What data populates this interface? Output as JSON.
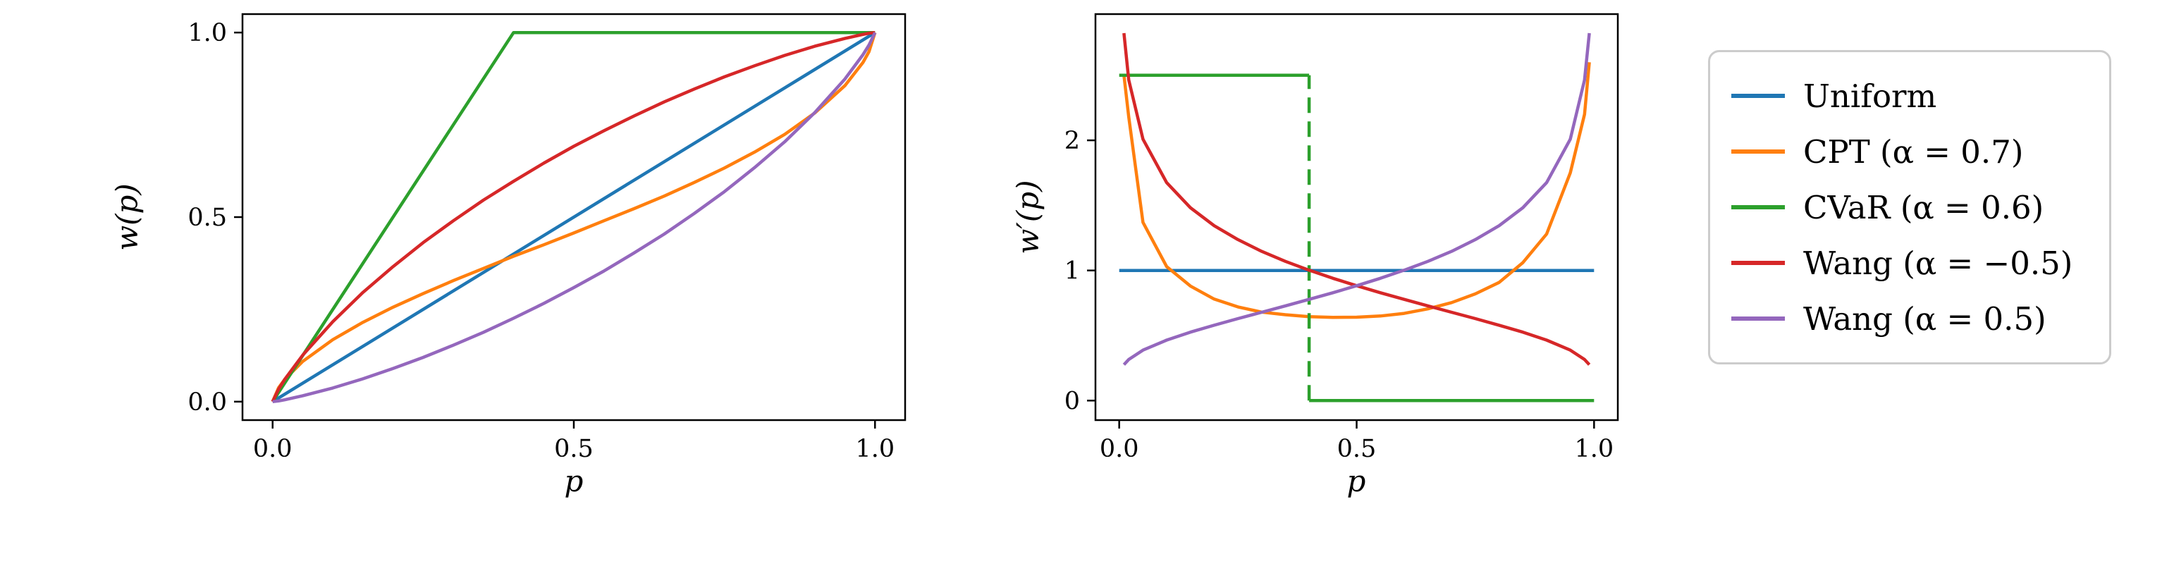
{
  "figure": {
    "background": "#ffffff"
  },
  "legend": {
    "position": "outside-right",
    "items": [
      {
        "label": "Uniform",
        "color": "#1f77b4"
      },
      {
        "label": "CPT (α = 0.7)",
        "color": "#ff7f0e"
      },
      {
        "label": "CVaR (α = 0.6)",
        "color": "#2ca02c"
      },
      {
        "label": "Wang (α = −0.5)",
        "color": "#d62728"
      },
      {
        "label": "Wang (α = 0.5)",
        "color": "#9467bd"
      }
    ]
  },
  "chart_data": [
    {
      "type": "line",
      "title": "",
      "xlabel": "p",
      "ylabel": "w(p)",
      "xlim": [
        -0.05,
        1.05
      ],
      "ylim": [
        -0.05,
        1.05
      ],
      "grid": false,
      "xticks": [
        0.0,
        0.5,
        1.0
      ],
      "xtick_labels": [
        "0.0",
        "0.5",
        "1.0"
      ],
      "yticks": [
        0.0,
        0.5,
        1.0
      ],
      "ytick_labels": [
        "0.0",
        "0.5",
        "1.0"
      ],
      "series": [
        {
          "name": "Uniform",
          "color": "#1f77b4",
          "x": [
            0,
            1
          ],
          "y": [
            0,
            1
          ]
        },
        {
          "name": "CPT (α = 0.7)",
          "color": "#ff7f0e",
          "x": [
            0,
            0.01,
            0.02,
            0.05,
            0.1,
            0.15,
            0.2,
            0.25,
            0.3,
            0.35,
            0.4,
            0.45,
            0.5,
            0.55,
            0.6,
            0.65,
            0.7,
            0.75,
            0.8,
            0.85,
            0.9,
            0.95,
            0.98,
            0.99,
            1.0
          ],
          "y": [
            0,
            0.038,
            0.06,
            0.109,
            0.168,
            0.215,
            0.256,
            0.293,
            0.328,
            0.361,
            0.394,
            0.425,
            0.457,
            0.49,
            0.523,
            0.557,
            0.594,
            0.633,
            0.676,
            0.724,
            0.782,
            0.856,
            0.919,
            0.948,
            1.0
          ]
        },
        {
          "name": "CVaR (α = 0.6)",
          "color": "#2ca02c",
          "x": [
            0,
            0.4,
            1.0
          ],
          "y": [
            0,
            1.0,
            1.0
          ]
        },
        {
          "name": "Wang (α = −0.5)",
          "color": "#d62728",
          "x": [
            0,
            0.01,
            0.02,
            0.05,
            0.1,
            0.15,
            0.2,
            0.25,
            0.3,
            0.35,
            0.4,
            0.45,
            0.5,
            0.55,
            0.6,
            0.65,
            0.7,
            0.75,
            0.8,
            0.85,
            0.9,
            0.95,
            0.98,
            0.99,
            1.0
          ],
          "y": [
            0,
            0.034,
            0.06,
            0.126,
            0.217,
            0.296,
            0.366,
            0.431,
            0.49,
            0.546,
            0.597,
            0.646,
            0.692,
            0.734,
            0.774,
            0.812,
            0.847,
            0.88,
            0.91,
            0.938,
            0.963,
            0.984,
            0.995,
            0.998,
            1.0
          ]
        },
        {
          "name": "Wang (α = 0.5)",
          "color": "#9467bd",
          "x": [
            0,
            0.01,
            0.02,
            0.05,
            0.1,
            0.15,
            0.2,
            0.25,
            0.3,
            0.35,
            0.4,
            0.45,
            0.5,
            0.55,
            0.6,
            0.65,
            0.7,
            0.75,
            0.8,
            0.85,
            0.9,
            0.95,
            0.98,
            0.99,
            1.0
          ],
          "y": [
            0,
            0.002,
            0.005,
            0.016,
            0.037,
            0.062,
            0.09,
            0.12,
            0.153,
            0.188,
            0.226,
            0.266,
            0.309,
            0.354,
            0.403,
            0.454,
            0.51,
            0.569,
            0.634,
            0.704,
            0.783,
            0.874,
            0.94,
            0.966,
            1.0
          ]
        }
      ]
    },
    {
      "type": "line",
      "title": "",
      "xlabel": "p",
      "ylabel": "w′(p)",
      "xlim": [
        -0.05,
        1.05
      ],
      "ylim": [
        -0.15,
        2.97
      ],
      "grid": false,
      "xticks": [
        0.0,
        0.5,
        1.0
      ],
      "xtick_labels": [
        "0.0",
        "0.5",
        "1.0"
      ],
      "yticks": [
        0,
        1,
        2
      ],
      "ytick_labels": [
        "0",
        "1",
        "2"
      ],
      "series": [
        {
          "name": "Uniform",
          "color": "#1f77b4",
          "x": [
            0,
            1
          ],
          "y": [
            1,
            1
          ]
        },
        {
          "name": "CPT (α = 0.7)",
          "color": "#ff7f0e",
          "x": [
            0.01,
            0.02,
            0.05,
            0.1,
            0.15,
            0.2,
            0.25,
            0.3,
            0.35,
            0.4,
            0.45,
            0.5,
            0.55,
            0.6,
            0.65,
            0.7,
            0.75,
            0.8,
            0.85,
            0.9,
            0.95,
            0.98,
            0.99
          ],
          "y": [
            2.5,
            2.18,
            1.37,
            1.03,
            0.88,
            0.78,
            0.72,
            0.68,
            0.66,
            0.645,
            0.64,
            0.641,
            0.65,
            0.67,
            0.705,
            0.753,
            0.82,
            0.908,
            1.06,
            1.28,
            1.75,
            2.2,
            2.6
          ]
        },
        {
          "name": "CVaR (α = 0.6)",
          "color": "#2ca02c",
          "x": [
            0,
            0.4,
            null,
            0.4,
            1.0
          ],
          "y": [
            2.5,
            2.5,
            null,
            0,
            0
          ]
        },
        {
          "name": "CVaR jump (dashed)",
          "color": "#2ca02c",
          "dash": true,
          "no_legend": true,
          "x": [
            0.4,
            0.4
          ],
          "y": [
            0,
            2.5
          ]
        },
        {
          "name": "Wang (α = −0.5)",
          "color": "#d62728",
          "x": [
            0.01,
            0.02,
            0.05,
            0.1,
            0.15,
            0.2,
            0.25,
            0.3,
            0.35,
            0.4,
            0.45,
            0.5,
            0.55,
            0.6,
            0.65,
            0.7,
            0.75,
            0.8,
            0.85,
            0.9,
            0.95,
            0.98,
            0.99
          ],
          "y": [
            2.824,
            2.464,
            2.009,
            1.675,
            1.482,
            1.344,
            1.237,
            1.147,
            1.07,
            1.002,
            0.94,
            0.883,
            0.829,
            0.778,
            0.728,
            0.679,
            0.63,
            0.579,
            0.526,
            0.465,
            0.388,
            0.316,
            0.276
          ]
        },
        {
          "name": "Wang (α = 0.5)",
          "color": "#9467bd",
          "x": [
            0.01,
            0.02,
            0.05,
            0.1,
            0.15,
            0.2,
            0.25,
            0.3,
            0.35,
            0.4,
            0.45,
            0.5,
            0.55,
            0.6,
            0.65,
            0.7,
            0.75,
            0.8,
            0.85,
            0.9,
            0.95,
            0.98,
            0.99
          ],
          "y": [
            0.276,
            0.316,
            0.388,
            0.465,
            0.526,
            0.579,
            0.63,
            0.679,
            0.728,
            0.778,
            0.829,
            0.883,
            0.94,
            1.002,
            1.07,
            1.147,
            1.237,
            1.344,
            1.482,
            1.675,
            2.009,
            2.464,
            2.824
          ]
        }
      ]
    }
  ]
}
